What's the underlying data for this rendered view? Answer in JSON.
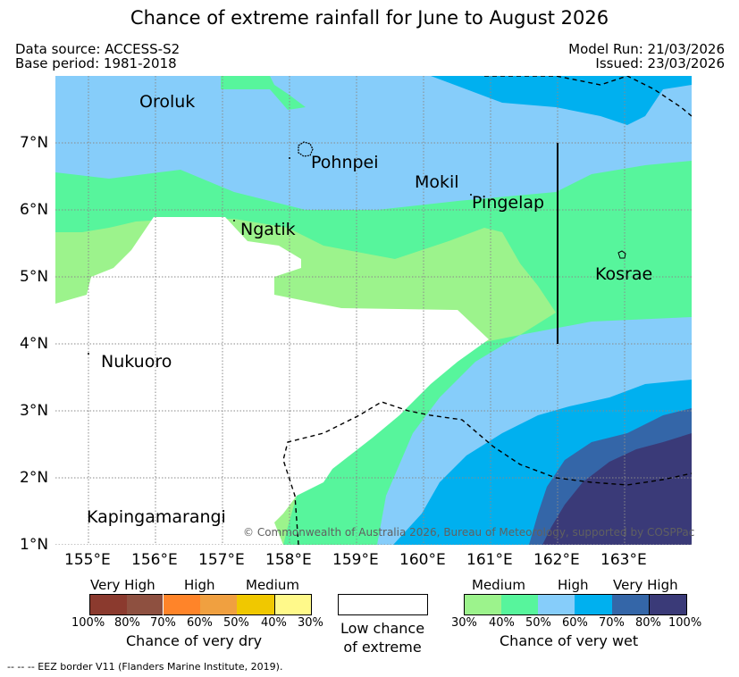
{
  "title": "Chance of extreme rainfall for June to August 2026",
  "data_source": "Data source: ACCESS-S2",
  "base_period": "Base period: 1981-2018",
  "model_run": "Model Run: 21/03/2026",
  "issued": "Issued: 23/03/2026",
  "axes": {
    "x_ticks": [
      "155°E",
      "156°E",
      "157°E",
      "158°E",
      "159°E",
      "160°E",
      "161°E",
      "162°E",
      "163°E"
    ],
    "y_ticks": [
      "7°N",
      "6°N",
      "5°N",
      "4°N",
      "3°N",
      "2°N",
      "1°N"
    ]
  },
  "places": {
    "oroluk": "Oroluk",
    "pohnpei": "Pohnpei",
    "mokil": "Mokil",
    "pingelap": "Pingelap",
    "ngatik": "Ngatik",
    "kosrae": "Kosrae",
    "nukuoro": "Nukuoro",
    "kapingamarangi": "Kapingamarangi"
  },
  "credit": "© Commonwealth of Australia 2026, Bureau of Meteorology, supported by COSPPac",
  "legend": {
    "dry": {
      "levels": [
        "Very High",
        "High",
        "Medium"
      ],
      "ticks": [
        "100%",
        "80%",
        "70%",
        "60%",
        "50%",
        "40%",
        "30%"
      ],
      "title": "Chance of very dry",
      "colors": [
        "#8b3a2e",
        "#8e5040",
        "#ff8429",
        "#f0a040",
        "#f0c800",
        "#fff98a"
      ]
    },
    "neutral": {
      "line1": "Low chance",
      "line2": "of extreme"
    },
    "wet": {
      "levels": [
        "Medium",
        "High",
        "Very High"
      ],
      "ticks": [
        "30%",
        "40%",
        "50%",
        "60%",
        "70%",
        "80%",
        "100%"
      ],
      "title": "Chance of very wet",
      "colors": [
        "#9cf38c",
        "#57f59c",
        "#86cdfa",
        "#00b0ef",
        "#3466a8",
        "#3a3a78"
      ]
    }
  },
  "footnote": "-- -- -- EEZ border V11 (Flanders Marine Institute, 2019)."
}
